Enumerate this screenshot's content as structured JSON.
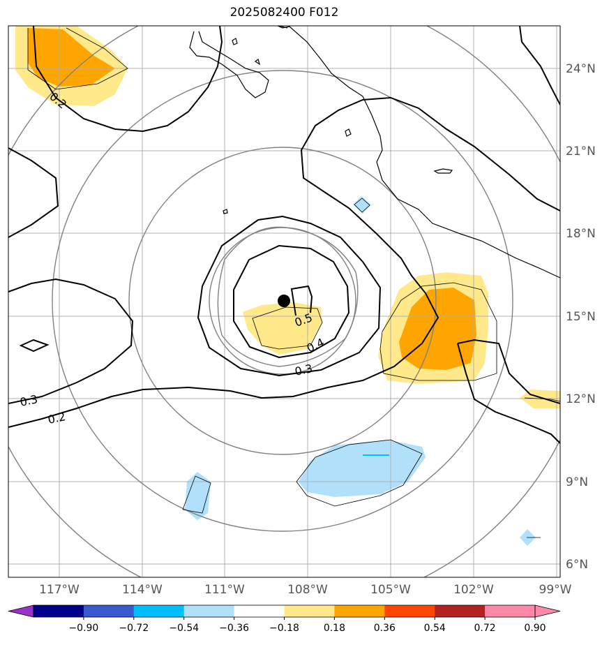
{
  "title": "2025082400 F012",
  "map": {
    "lon_range": [
      -118.2,
      -98.8
    ],
    "lat_range": [
      5.5,
      25.5
    ],
    "lon_ticks": [
      "117°W",
      "114°W",
      "111°W",
      "108°W",
      "105°W",
      "102°W",
      "99°W"
    ],
    "lat_ticks": [
      "6°N",
      "9°N",
      "12°N",
      "15°N",
      "18°N",
      "21°N",
      "24°N"
    ],
    "storm_center": {
      "lon": -109.0,
      "lat": 15.5
    },
    "contour_labels": [
      "0.2",
      "0.5",
      "0.4",
      "0.3",
      "0.3",
      "0.2"
    ]
  },
  "colorbar": {
    "tick_labels": [
      "−0.90",
      "−0.72",
      "−0.54",
      "−0.36",
      "−0.18",
      "0.18",
      "0.36",
      "0.54",
      "0.72",
      "0.90"
    ],
    "colors": [
      "#9932cc",
      "#00008b",
      "#3a5bd0",
      "#00bfff",
      "#b0e0fa",
      "#ffffff",
      "#ffe98a",
      "#ffa500",
      "#ff4500",
      "#b22222",
      "#ff88aa",
      "#ff88aa"
    ]
  }
}
